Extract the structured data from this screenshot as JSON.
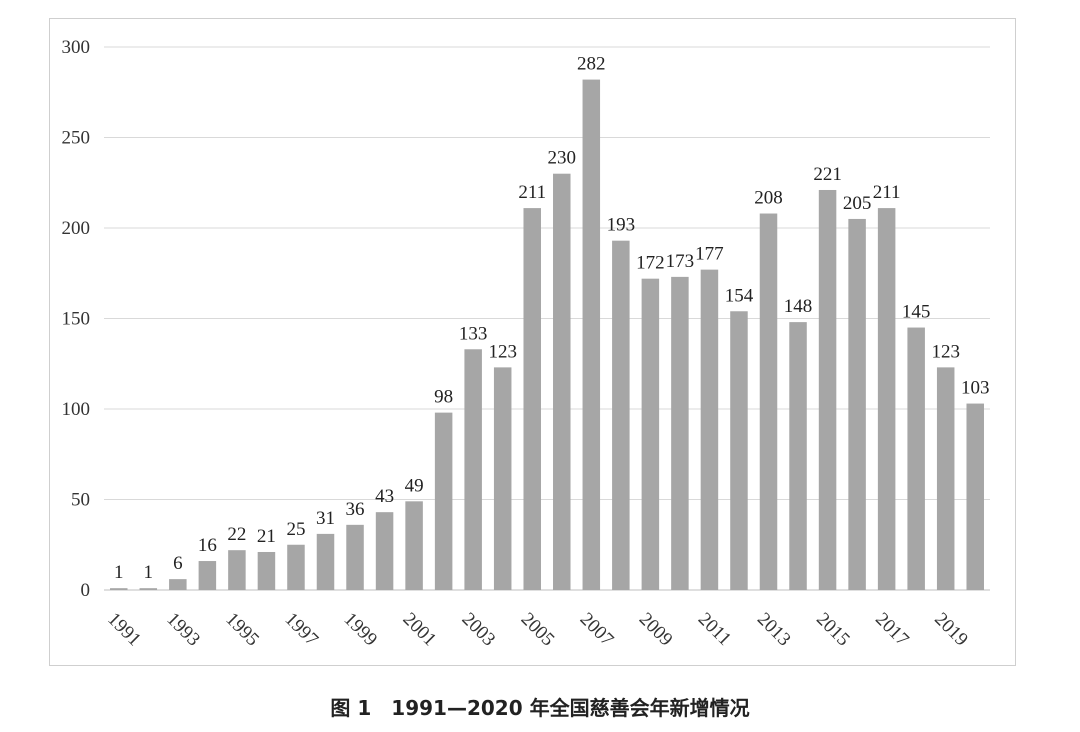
{
  "caption": "图 1　1991—2020 年全国慈善会年新增情况",
  "colors": {
    "bar": "#a6a6a6",
    "grid": "#d9d9d9",
    "axis": "#bfbfbf",
    "frame": "#cfcfcf"
  },
  "chart_data": {
    "type": "bar",
    "title": "",
    "xlabel": "",
    "ylabel": "",
    "ylim": [
      0,
      300
    ],
    "yticks": [
      0,
      50,
      100,
      150,
      200,
      250,
      300
    ],
    "grid": true,
    "legend": "none",
    "categories": [
      1991,
      1992,
      1993,
      1994,
      1995,
      1996,
      1997,
      1998,
      1999,
      2000,
      2001,
      2002,
      2003,
      2004,
      2005,
      2006,
      2007,
      2008,
      2009,
      2010,
      2011,
      2012,
      2013,
      2014,
      2015,
      2016,
      2017,
      2018,
      2019,
      2020
    ],
    "x_tick_labels": [
      "1991",
      "1993",
      "1995",
      "1997",
      "1999",
      "2001",
      "2003",
      "2005",
      "2007",
      "2009",
      "2011",
      "2013",
      "2015",
      "2017",
      "2019"
    ],
    "values": [
      1,
      1,
      6,
      16,
      22,
      21,
      25,
      31,
      36,
      43,
      49,
      98,
      133,
      123,
      211,
      230,
      282,
      193,
      172,
      173,
      177,
      154,
      208,
      148,
      221,
      205,
      211,
      145,
      123,
      103
    ]
  }
}
